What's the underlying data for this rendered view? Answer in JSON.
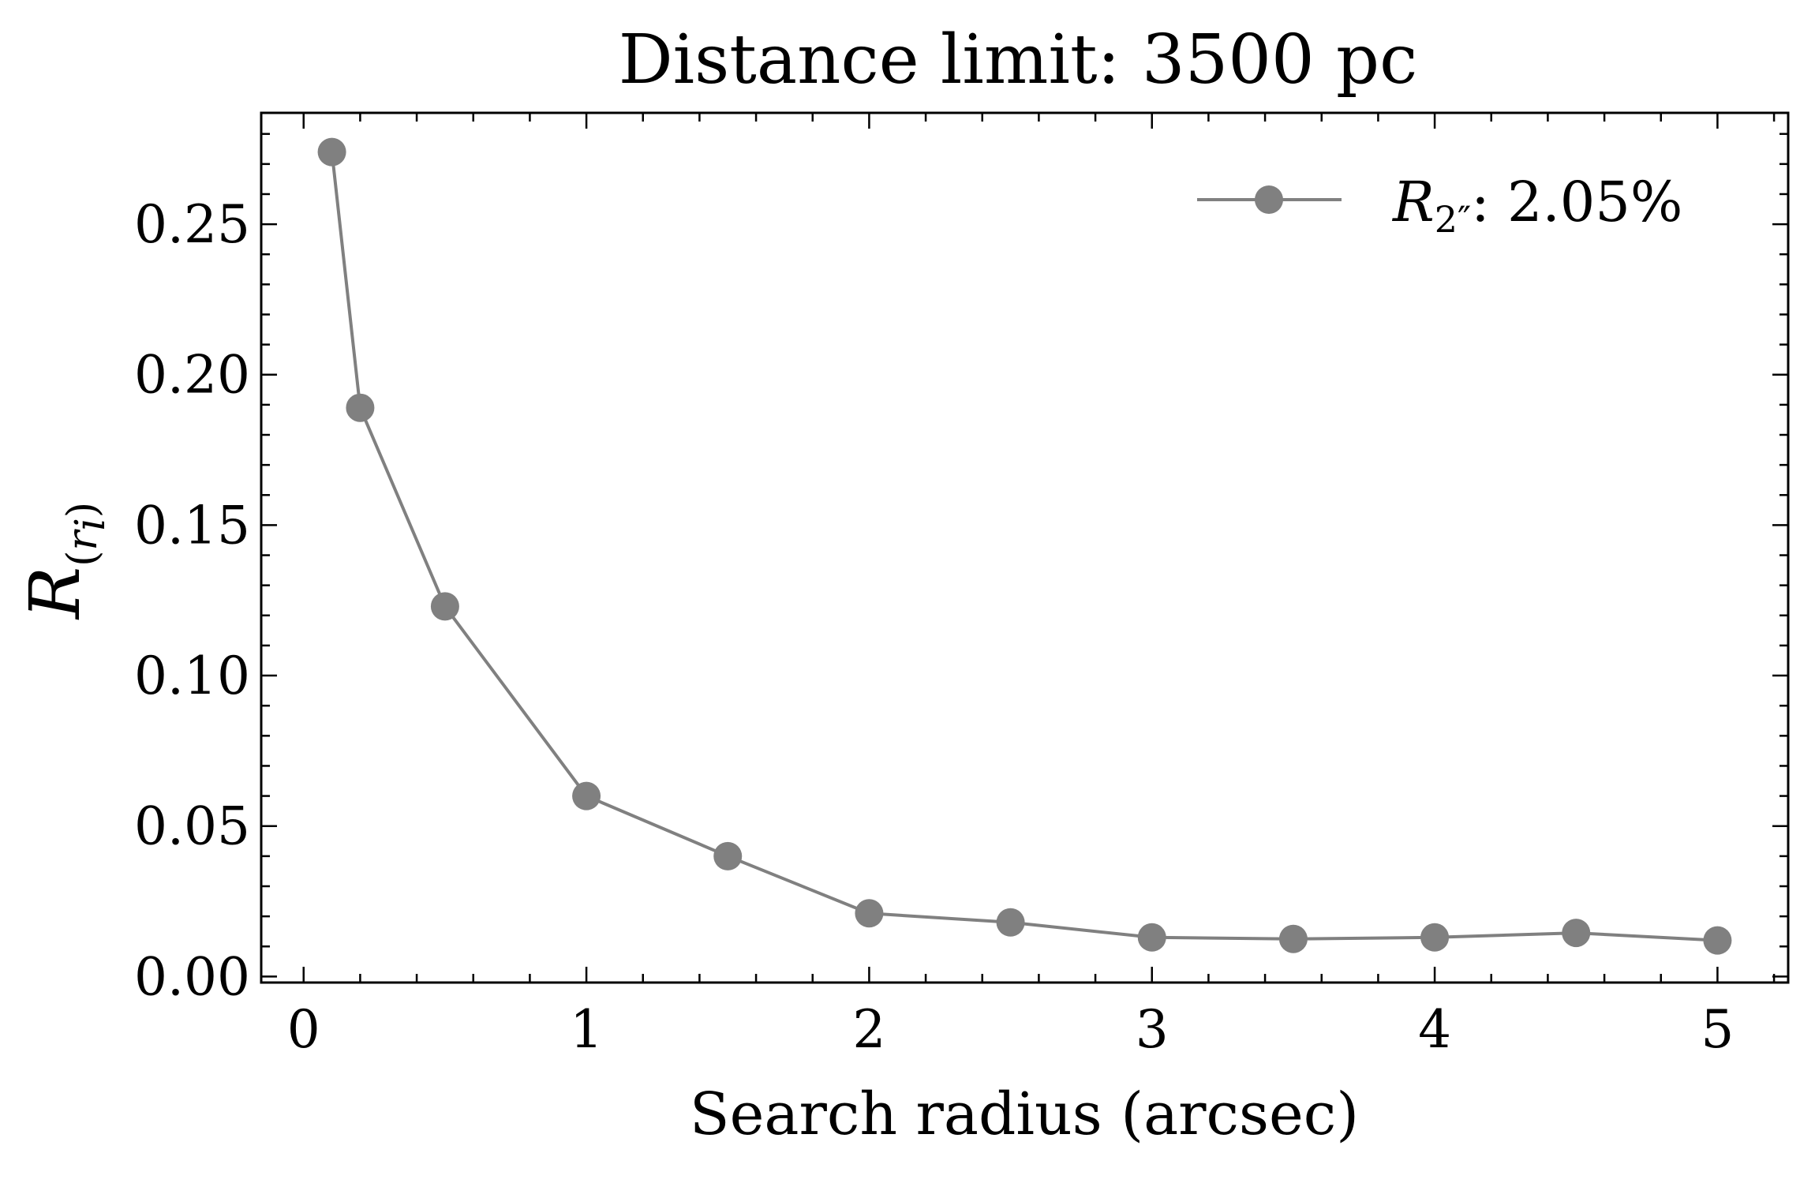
{
  "chart_data": {
    "type": "line",
    "title": "Distance limit: 3500 pc",
    "xlabel": "Search radius (arcsec)",
    "ylabel": {
      "main": "R",
      "sub_open": "(",
      "sub_var": "r",
      "sub_index": "i",
      "sub_close": ")"
    },
    "xlim": [
      -0.15,
      5.25
    ],
    "ylim": [
      -0.002,
      0.287
    ],
    "xticks": [
      0,
      1,
      2,
      3,
      4,
      5
    ],
    "xtick_labels": [
      "0",
      "1",
      "2",
      "3",
      "4",
      "5"
    ],
    "yticks": [
      0.0,
      0.05,
      0.1,
      0.15,
      0.2,
      0.25
    ],
    "ytick_labels": [
      "0.00",
      "0.05",
      "0.10",
      "0.15",
      "0.20",
      "0.25"
    ],
    "x_minor_step": 0.2,
    "y_minor_step": 0.01,
    "grid": false,
    "legend_position": "top-right",
    "series": [
      {
        "legend": {
          "main": "R",
          "sub": "2″",
          "value": ": 2.05%"
        },
        "color": "#808080",
        "marker": "circle",
        "x": [
          0.1,
          0.2,
          0.5,
          1.0,
          1.5,
          2.0,
          2.5,
          3.0,
          3.5,
          4.0,
          4.5,
          5.0
        ],
        "y": [
          0.274,
          0.189,
          0.123,
          0.06,
          0.04,
          0.021,
          0.018,
          0.013,
          0.0125,
          0.013,
          0.0145,
          0.012
        ]
      }
    ]
  }
}
